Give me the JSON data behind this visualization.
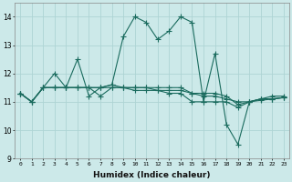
{
  "xlabel": "Humidex (Indice chaleur)",
  "ylabel": "",
  "bg_color": "#cce9e9",
  "line_color": "#1a6b5e",
  "grid_color": "#aed4d4",
  "xlim": [
    -0.5,
    23.5
  ],
  "ylim": [
    9,
    14.5
  ],
  "yticks": [
    9,
    10,
    11,
    12,
    13,
    14
  ],
  "xticks": [
    0,
    1,
    2,
    3,
    4,
    5,
    6,
    7,
    8,
    9,
    10,
    11,
    12,
    13,
    14,
    15,
    16,
    17,
    18,
    19,
    20,
    21,
    22,
    23
  ],
  "series": [
    [
      11.3,
      11.0,
      11.5,
      12.0,
      11.5,
      12.5,
      11.2,
      11.5,
      11.6,
      13.3,
      14.0,
      13.8,
      13.2,
      13.5,
      14.0,
      13.8,
      11.0,
      12.7,
      10.2,
      9.5,
      11.0,
      11.1,
      11.2,
      11.2
    ],
    [
      11.3,
      11.0,
      11.5,
      11.5,
      11.5,
      11.5,
      11.5,
      11.2,
      11.5,
      11.5,
      11.5,
      11.5,
      11.4,
      11.4,
      11.4,
      11.3,
      11.2,
      11.2,
      11.1,
      11.0,
      11.0,
      11.1,
      11.1,
      11.15
    ],
    [
      11.3,
      11.0,
      11.5,
      11.5,
      11.5,
      11.5,
      11.5,
      11.5,
      11.6,
      11.5,
      11.5,
      11.5,
      11.5,
      11.5,
      11.5,
      11.3,
      11.3,
      11.3,
      11.2,
      10.9,
      11.0,
      11.1,
      11.1,
      11.15
    ],
    [
      11.3,
      11.0,
      11.5,
      11.5,
      11.5,
      11.5,
      11.5,
      11.5,
      11.5,
      11.5,
      11.4,
      11.4,
      11.4,
      11.3,
      11.3,
      11.0,
      11.0,
      11.0,
      11.0,
      10.8,
      11.0,
      11.05,
      11.1,
      11.15
    ]
  ]
}
